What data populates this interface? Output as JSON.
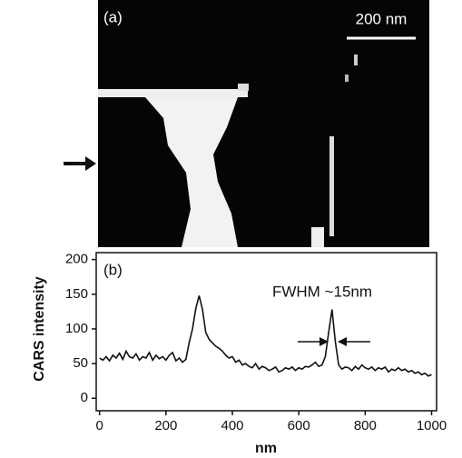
{
  "chart_data": [
    {
      "type": "image",
      "label": "(a)",
      "scale_bar_label": "200 nm"
    },
    {
      "type": "line",
      "label": "(b)",
      "annotation": "FWHM ~15nm",
      "x_label": "nm",
      "y_label": "CARS intensity",
      "x": [
        0,
        10,
        20,
        30,
        40,
        50,
        60,
        70,
        80,
        90,
        100,
        110,
        120,
        130,
        140,
        150,
        160,
        170,
        180,
        190,
        200,
        210,
        220,
        230,
        240,
        250,
        260,
        270,
        280,
        290,
        300,
        310,
        320,
        330,
        340,
        350,
        360,
        370,
        380,
        390,
        400,
        410,
        420,
        430,
        440,
        450,
        460,
        470,
        480,
        490,
        500,
        510,
        520,
        530,
        540,
        550,
        560,
        570,
        580,
        590,
        600,
        610,
        620,
        630,
        640,
        650,
        660,
        670,
        680,
        690,
        700,
        710,
        720,
        730,
        740,
        750,
        760,
        770,
        780,
        790,
        800,
        810,
        820,
        830,
        840,
        850,
        860,
        870,
        880,
        890,
        900,
        910,
        920,
        930,
        940,
        950,
        960,
        970,
        980,
        990,
        1000
      ],
      "series": [
        {
          "color": "#111111",
          "values": [
            58,
            55,
            60,
            54,
            62,
            58,
            65,
            56,
            68,
            60,
            58,
            64,
            55,
            60,
            58,
            66,
            55,
            62,
            57,
            60,
            55,
            62,
            66,
            54,
            58,
            52,
            56,
            80,
            100,
            130,
            148,
            128,
            95,
            85,
            80,
            75,
            72,
            68,
            62,
            58,
            60,
            52,
            55,
            48,
            50,
            46,
            44,
            50,
            42,
            46,
            44,
            40,
            42,
            45,
            38,
            40,
            44,
            42,
            45,
            40,
            44,
            42,
            46,
            45,
            48,
            52,
            46,
            48,
            60,
            95,
            128,
            82,
            48,
            42,
            45,
            44,
            40,
            46,
            42,
            48,
            44,
            42,
            45,
            40,
            44,
            42,
            45,
            38,
            42,
            40,
            44,
            40,
            42,
            38,
            40,
            36,
            38,
            34,
            36,
            32,
            34
          ]
        }
      ],
      "xlim": [
        -10,
        1015
      ],
      "ylim": [
        -18,
        210
      ],
      "xticks": [
        0,
        200,
        400,
        600,
        800,
        1000
      ],
      "yticks": [
        0,
        50,
        100,
        150,
        200
      ]
    }
  ]
}
